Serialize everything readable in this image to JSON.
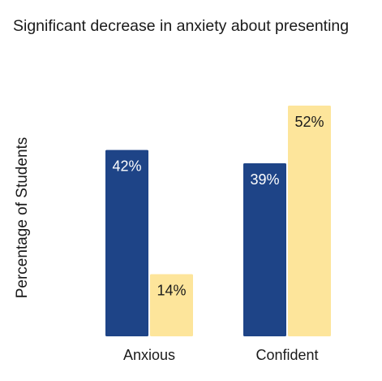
{
  "chart_data": {
    "type": "bar",
    "title": "Significant decrease in anxiety about presenting",
    "xlabel": "",
    "ylabel": "Percentage of Students",
    "categories": [
      "Anxious",
      "Confident"
    ],
    "series": [
      {
        "values": [
          42,
          39
        ],
        "color": "#1e4487",
        "label_color": "#ffffff"
      },
      {
        "values": [
          14,
          52
        ],
        "color": "#fde59b",
        "label_color": "#1a1a1a"
      }
    ],
    "value_suffix": "%",
    "ylim": [
      0,
      52
    ],
    "grid": false,
    "legend": "none"
  }
}
